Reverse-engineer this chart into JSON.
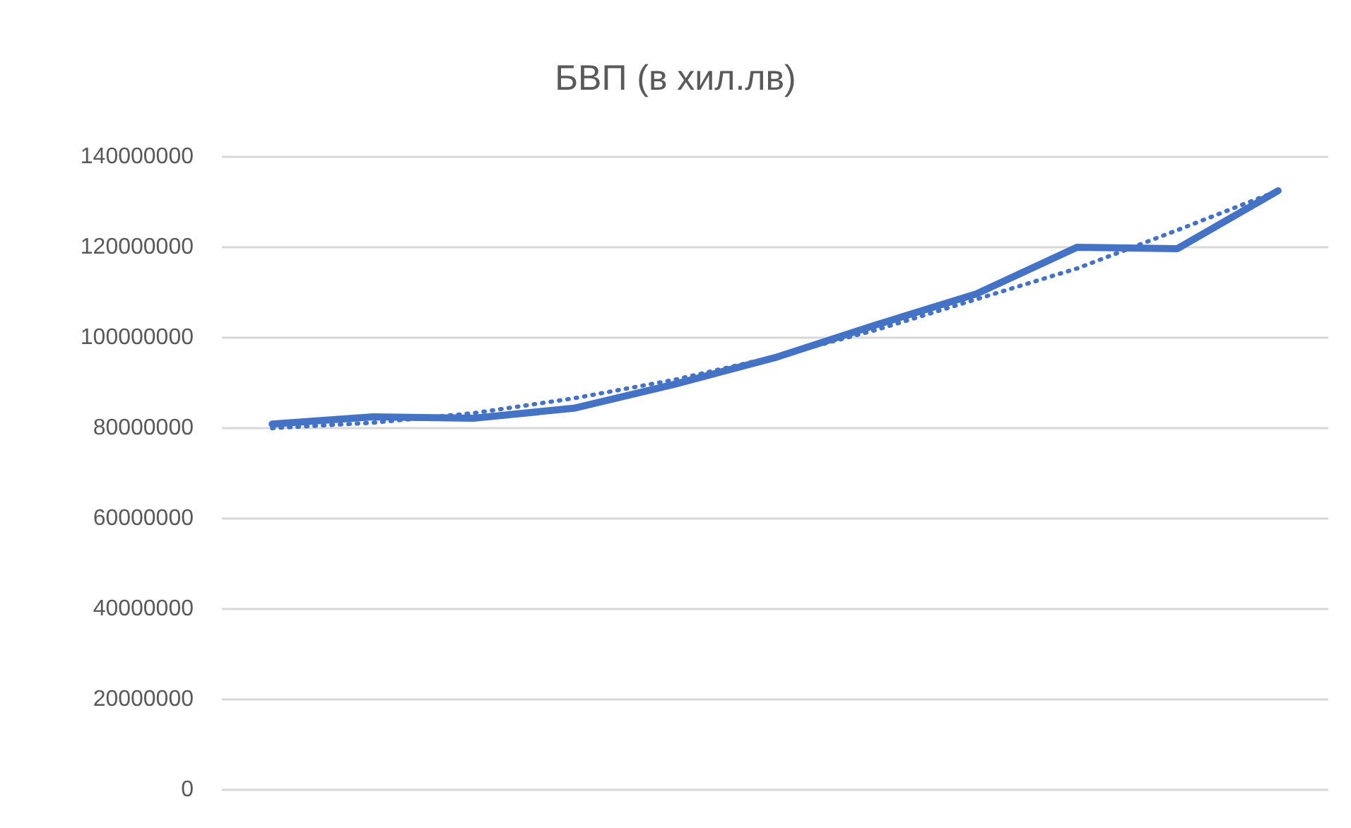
{
  "chart_data": {
    "type": "line",
    "title": "БВП (в хил.лв)",
    "categories": [
      null,
      null,
      null,
      null,
      null,
      null,
      null,
      null,
      null,
      null,
      null
    ],
    "series": [
      {
        "color": "#4472c4",
        "line_style": "solid",
        "values": [
          80900000,
          82500000,
          82200000,
          84400000,
          89700000,
          95600000,
          102800000,
          109700000,
          120000000,
          119700000,
          132500000
        ]
      },
      {
        "color": "#4472c4",
        "line_style": "dotted",
        "values": [
          80000000,
          81200000,
          83300000,
          86600000,
          90700000,
          95800000,
          101700000,
          108500000,
          115300000,
          123800000,
          132500000
        ]
      }
    ],
    "ylim": [
      0,
      140000000
    ],
    "yticks": [
      0,
      20000000,
      40000000,
      60000000,
      80000000,
      100000000,
      120000000,
      140000000
    ],
    "grid": "y",
    "marker": "none",
    "tick_labels": "y"
  }
}
